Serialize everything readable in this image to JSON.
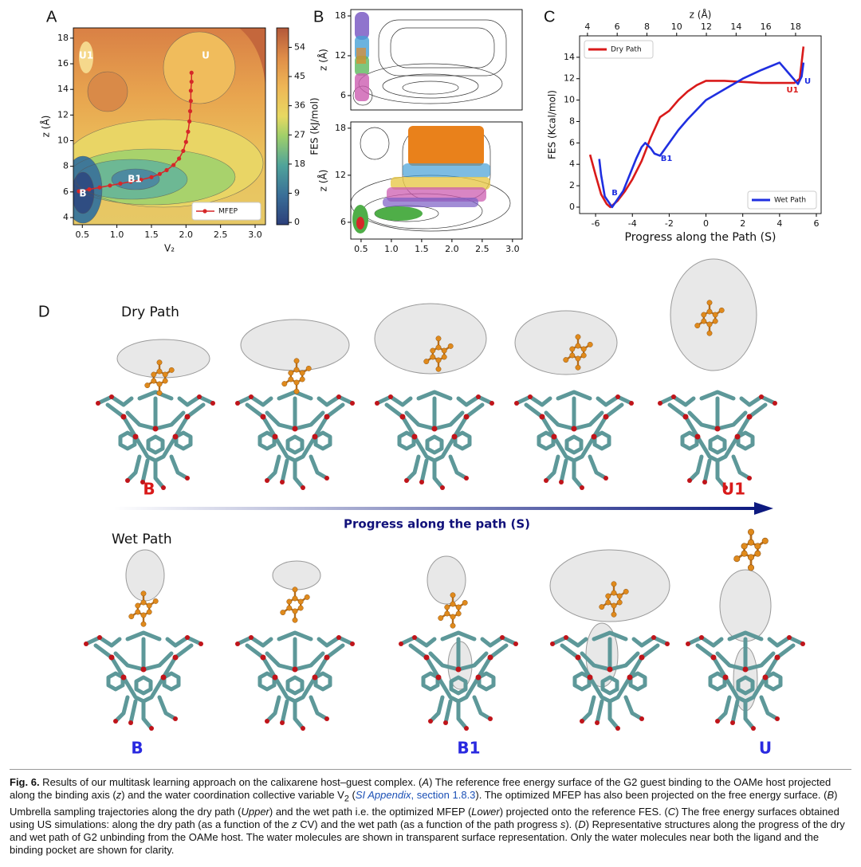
{
  "chart_data": [
    {
      "type": "contour",
      "panel": "A",
      "xlabel": "V₂",
      "ylabel": "z (Å)",
      "xlim": [
        0.37,
        3.15
      ],
      "ylim": [
        3.44,
        18.8
      ],
      "xticks": [
        0.5,
        {
          "value": 1,
          "label": "1.0"
        },
        1.5,
        {
          "value": 2,
          "label": "2.0"
        },
        2.5,
        {
          "value": 3,
          "label": "3.0"
        }
      ],
      "yticks": [
        4,
        6,
        8,
        10,
        12,
        14,
        16,
        18
      ],
      "colorbar": {
        "label": "FES (kJ/mol)",
        "lim": [
          -0.7,
          60
        ],
        "ticks": [
          0,
          9,
          18,
          27,
          36,
          45,
          54
        ]
      },
      "series": [
        {
          "name": "MFEP",
          "color": "#d62728",
          "x": [
            0.45,
            0.6,
            0.75,
            0.9,
            1.05,
            1.2,
            1.35,
            1.5,
            1.62,
            1.72,
            1.82,
            1.9,
            1.96,
            2.0,
            2.03,
            2.05,
            2.06,
            2.07,
            2.07,
            2.08,
            2.08
          ],
          "values": [
            6.05,
            6.2,
            6.35,
            6.5,
            6.65,
            6.8,
            6.95,
            7.15,
            7.4,
            7.7,
            8.1,
            8.6,
            9.2,
            9.9,
            10.7,
            11.5,
            12.3,
            13.1,
            13.9,
            14.6,
            15.3
          ]
        }
      ],
      "legend": "lower right",
      "annotations": [
        {
          "text": "U1",
          "color": "#ffffff"
        },
        {
          "text": "U",
          "color": "#ffffff"
        },
        {
          "text": "B1",
          "color": "#ffffff"
        },
        {
          "text": "B",
          "color": "#ffffff"
        }
      ]
    },
    {
      "type": "contour",
      "panel": "B",
      "ylabel": "z (Å)",
      "xlim": [
        0.33,
        3.16
      ],
      "ylim": [
        3.83,
        18.96
      ],
      "yticks": [
        6,
        12,
        18
      ]
    },
    {
      "type": "contour",
      "ylabel": "z (Å)",
      "xlim": [
        0.33,
        3.16
      ],
      "ylim": [
        3.86,
        18.8
      ],
      "xticks": [
        0.5,
        {
          "value": 1,
          "label": "1.0"
        },
        1.5,
        {
          "value": 2,
          "label": "2.0"
        },
        2.5,
        {
          "value": 3,
          "label": "3.0"
        }
      ],
      "yticks": [
        6,
        12,
        18
      ]
    },
    {
      "type": "line",
      "panel": "C",
      "xlabel": "Progress along the Path (S)",
      "ylabel": "FES (Kcal/mol)",
      "x2label": "z (Å)",
      "xlim": [
        -6.87,
        6.26
      ],
      "ylim": [
        -0.6,
        16
      ],
      "x2lim": [
        3.47,
        19.72
      ],
      "xticks": [
        -6,
        -4,
        -2,
        0,
        2,
        4,
        6
      ],
      "yticks": [
        0,
        2,
        4,
        6,
        8,
        10,
        12,
        14
      ],
      "x2ticks": [
        4,
        6,
        8,
        10,
        12,
        14,
        16,
        18
      ],
      "series": [
        {
          "name": "Dry Path",
          "color": "#d91a1a",
          "legend": "upper left",
          "x": [
            -6.3,
            -6.0,
            -5.7,
            -5.4,
            -5.2,
            -4.8,
            -4.4,
            -4.0,
            -3.5,
            -3.0,
            -2.5,
            -2.0,
            -1.5,
            -1.0,
            -0.5,
            0,
            1,
            2,
            3,
            4,
            4.8,
            5.1,
            5.2,
            5.3
          ],
          "values": [
            4.9,
            3.0,
            1.2,
            0.3,
            0,
            0.6,
            1.5,
            2.6,
            4.3,
            6.5,
            8.4,
            9.0,
            10.0,
            10.8,
            11.4,
            11.8,
            11.8,
            11.7,
            11.6,
            11.6,
            11.6,
            12.0,
            13.5,
            15.0
          ]
        },
        {
          "name": "Wet Path",
          "color": "#1f2fe0",
          "legend": "lower right",
          "x": [
            -5.8,
            -5.7,
            -5.5,
            -5.1,
            -4.5,
            -3.8,
            -3.5,
            -3.3,
            -3.0,
            -2.8,
            -2.5,
            -2.0,
            -1.5,
            -1.0,
            0,
            1,
            2,
            3,
            4,
            4.5,
            5.0,
            5.2,
            5.3
          ],
          "values": [
            4.5,
            3.0,
            1.0,
            0,
            1.5,
            4.5,
            5.6,
            6.0,
            5.5,
            5.0,
            4.8,
            6.0,
            7.2,
            8.2,
            10.0,
            11.0,
            12.0,
            12.8,
            13.5,
            12.5,
            11.5,
            12.2,
            13.5
          ]
        }
      ],
      "annotations": [
        {
          "text": "B",
          "color": "#1f2fe0"
        },
        {
          "text": "B1",
          "color": "#1f2fe0"
        },
        {
          "text": "U1",
          "color": "#d91a1a"
        },
        {
          "text": "U",
          "color": "#1f2fe0"
        }
      ]
    }
  ],
  "panel_d": {
    "panel": "D",
    "dry_label": "Dry Path",
    "dry_states": [
      "B",
      "U1"
    ],
    "arrow_label": "Progress along the path (S)",
    "wet_label": "Wet Path",
    "wet_states": [
      "B",
      "B1",
      "U"
    ]
  },
  "caption": [
    "Fig. 6.",
    " Results of our multitask learning approach on the calixarene host–guest complex. (",
    "A",
    ") The reference free energy surface of the G2 guest binding to the OAMe host projected along the binding axis (",
    "z",
    ") and the water coordination collective variable V",
    "2",
    " (",
    "SI Appendix",
    ", section 1.8.3",
    "). The optimized MFEP has also been projected on the free energy surface. (",
    "B",
    ") Umbrella sampling trajectories along the dry path (",
    "Upper",
    ") and the wet path i.e. the optimized MFEP (",
    "Lower",
    ") projected onto the reference FES. (",
    "C",
    ") The free energy surfaces obtained using US simulations: along the dry path (as a function of the ",
    "z",
    " CV) and the wet path (as a function of the path progress ",
    "s",
    "). (",
    "D",
    ") Representative structures along the progress of the dry and wet path of G2 unbinding from the OAMe host. The water molecules are shown in transparent surface representation. Only the water molecules near both the ligand and the binding pocket are shown for clarity."
  ]
}
